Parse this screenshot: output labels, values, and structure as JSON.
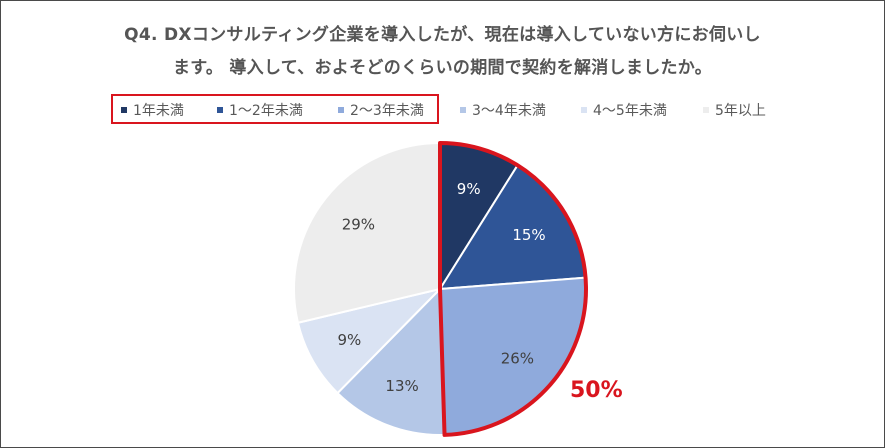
{
  "title_lines": [
    "Q4. DXコンサルティング企業を導入したが、現在は導入していない方にお伺いし",
    "ます。 導入して、およそどのくらいの期間で契約を解消しましたか。"
  ],
  "highlight_label": "50%",
  "colors": {
    "highlight": "#d9151e",
    "text": "#595959"
  },
  "chart_data": {
    "type": "pie",
    "categories": [
      "1年未満",
      "1〜2年未満",
      "2〜3年未満",
      "3〜4年未満",
      "4〜5年未満",
      "5年以上"
    ],
    "values": [
      9,
      15,
      26,
      13,
      9,
      29
    ],
    "value_labels": [
      "9%",
      "15%",
      "26%",
      "13%",
      "9%",
      "29%"
    ],
    "colors": [
      "#203864",
      "#2f5597",
      "#8faadc",
      "#b4c7e7",
      "#dae3f3",
      "#ededed"
    ],
    "label_colors": [
      "#ffffff",
      "#ffffff",
      "#404040",
      "#404040",
      "#404040",
      "#404040"
    ],
    "highlighted_categories": [
      "1年未満",
      "1〜2年未満",
      "2〜3年未満"
    ],
    "legend_position": "top",
    "start": "12 o'clock",
    "direction": "clockwise"
  }
}
